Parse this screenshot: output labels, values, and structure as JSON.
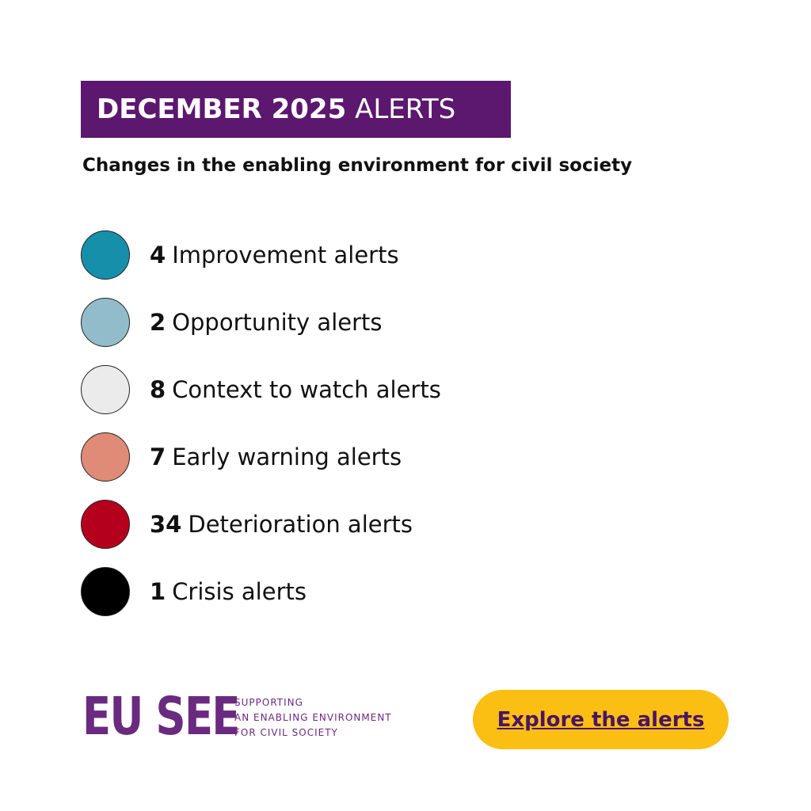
{
  "header": {
    "title_bold": "DECEMBER 2025",
    "title_rest": "ALERTS",
    "background": "#5c176e"
  },
  "subtitle": "Changes in the enabling environment for civil society",
  "items": [
    {
      "count": 4,
      "label": "Improvement alerts",
      "color": "#168fab"
    },
    {
      "count": 2,
      "label": "Opportunity alerts",
      "color": "#93bccb"
    },
    {
      "count": 8,
      "label": "Context to watch alerts",
      "color": "#ebebeb"
    },
    {
      "count": 7,
      "label": "Early warning alerts",
      "color": "#e08a78"
    },
    {
      "count": 34,
      "label": "Deterioration alerts",
      "color": "#b5001d"
    },
    {
      "count": 1,
      "label": "Crisis alerts",
      "color": "#000000"
    }
  ],
  "logo": {
    "name": "EU SEE",
    "tagline": [
      "SUPPORTING",
      "AN ENABLING ENVIRONMENT",
      "FOR CIVIL SOCIETY"
    ]
  },
  "button": {
    "label": "Explore the alerts"
  }
}
